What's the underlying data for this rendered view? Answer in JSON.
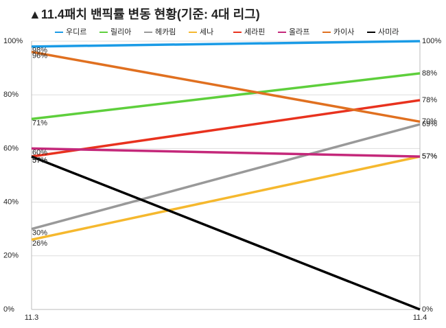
{
  "chart_data": {
    "type": "line",
    "title": "▲11.4패치 밴픽률 변동 현황(기준: 4대 리그)",
    "categories": [
      "11.3",
      "11.4"
    ],
    "series": [
      {
        "name": "우디르",
        "color": "#1a9be6",
        "values": [
          98,
          100
        ],
        "value_labels": [
          "98%",
          "100%"
        ]
      },
      {
        "name": "릴리아",
        "color": "#5ecf3c",
        "values": [
          71,
          88
        ],
        "value_labels": [
          "71%",
          "88%"
        ]
      },
      {
        "name": "헤카림",
        "color": "#999999",
        "values": [
          30,
          69
        ],
        "value_labels": [
          "30%",
          "69%"
        ]
      },
      {
        "name": "세나",
        "color": "#f5b82e",
        "values": [
          26,
          57
        ],
        "value_labels": [
          "26%",
          "57%"
        ]
      },
      {
        "name": "세라핀",
        "color": "#e8321e",
        "values": [
          57,
          78
        ],
        "value_labels": [
          "57%",
          "78%"
        ]
      },
      {
        "name": "올라프",
        "color": "#c4287a",
        "values": [
          60,
          57
        ],
        "value_labels": [
          "60%",
          "57%"
        ]
      },
      {
        "name": "카이사",
        "color": "#e07020",
        "values": [
          96,
          70
        ],
        "value_labels": [
          "96%",
          "70%"
        ]
      },
      {
        "name": "사미라",
        "color": "#000000",
        "values": [
          57,
          0
        ],
        "value_labels": [
          "57%",
          "0%"
        ]
      }
    ],
    "ylim": [
      0,
      100
    ],
    "yticks": [
      {
        "value": 0,
        "label": "0%"
      },
      {
        "value": 20,
        "label": "20%"
      },
      {
        "value": 40,
        "label": "40%"
      },
      {
        "value": 60,
        "label": "60%"
      },
      {
        "value": 80,
        "label": "80%"
      },
      {
        "value": 100,
        "label": "100%"
      }
    ],
    "grid": true
  }
}
